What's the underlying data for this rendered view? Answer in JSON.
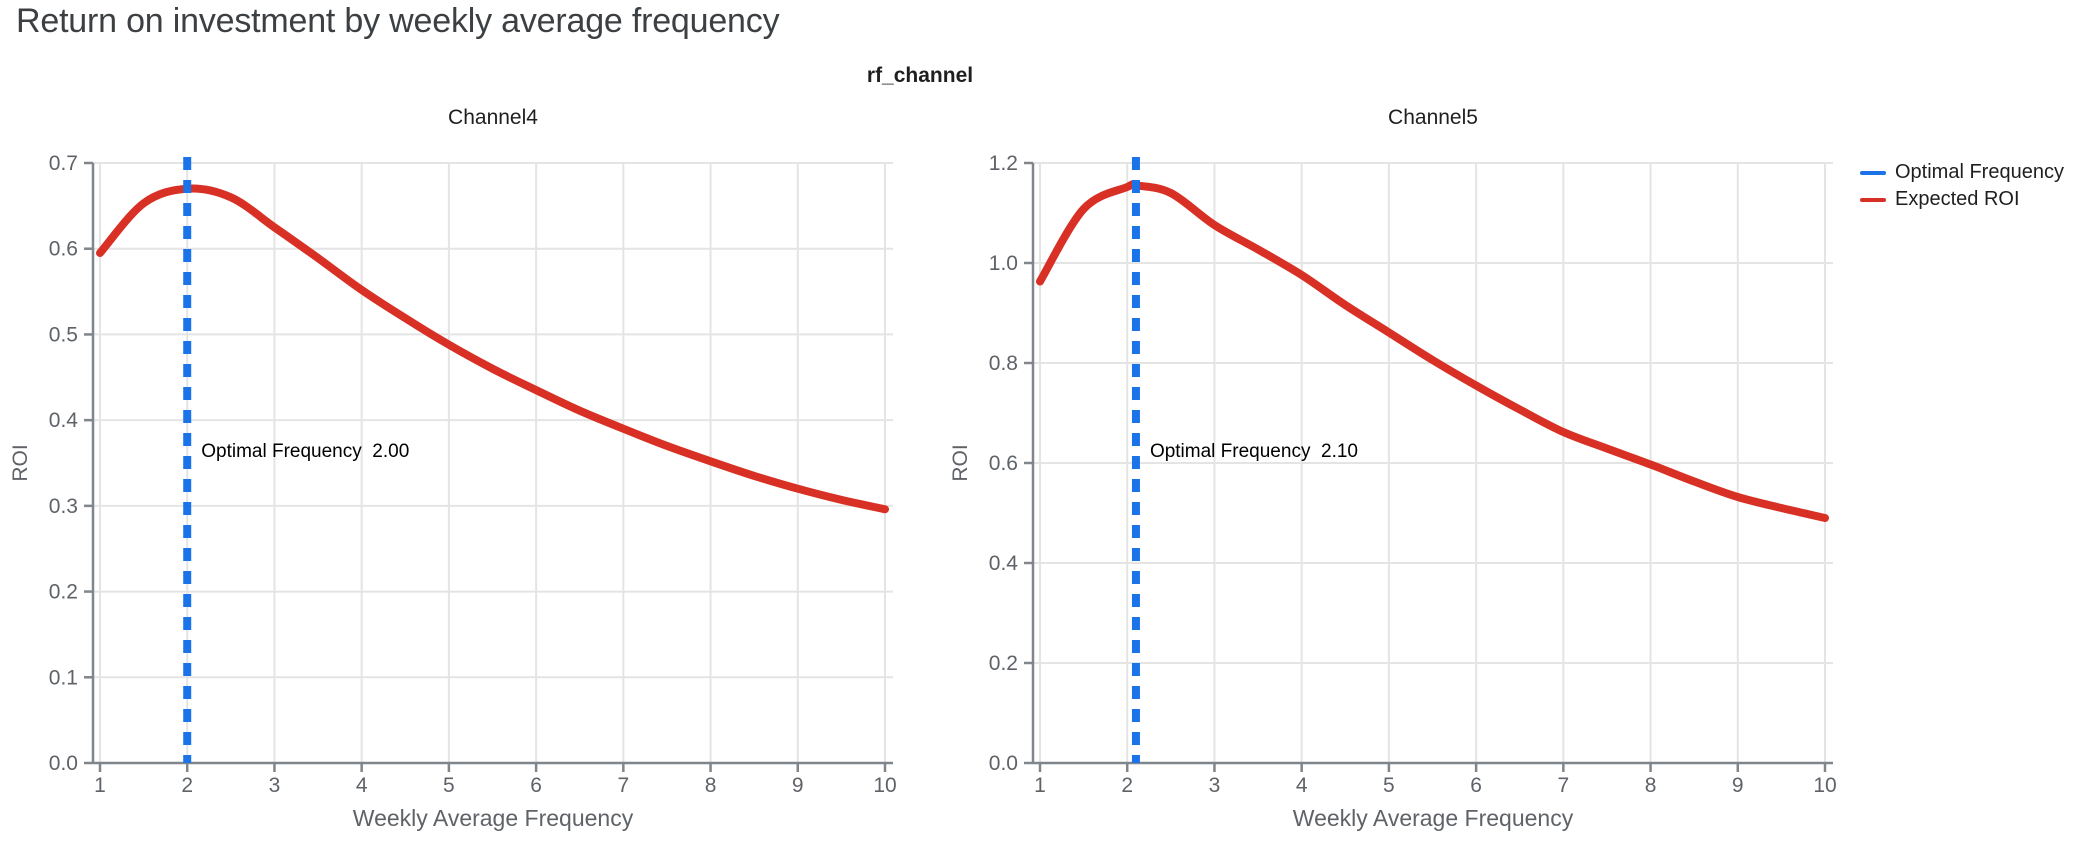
{
  "page": {
    "title": "Return on investment by weekly average frequency"
  },
  "chart_data": {
    "type": "line",
    "suptitle": "rf_channel",
    "xlabel": "Weekly Average Frequency",
    "ylabel": "ROI",
    "x_tick_labels": [
      "1",
      "2",
      "3",
      "4",
      "5",
      "6",
      "7",
      "8",
      "9",
      "10"
    ],
    "xlim": [
      1,
      10
    ],
    "grid": true,
    "legend_position": "top-right",
    "legend": [
      {
        "label": "Optimal Frequency",
        "color": "#1a73e8",
        "style": "dashed-vline"
      },
      {
        "label": "Expected ROI",
        "color": "#d93025",
        "style": "solid-line"
      }
    ],
    "colors": {
      "grid": "#e4e4e4",
      "axis": "#7f868c",
      "tick_label": "#5f6368",
      "axis_title": "#5f6368",
      "panel_title": "#1f1f1f",
      "annotation": "#000000",
      "page_title": "#3c4043"
    },
    "panels": [
      {
        "title": "Channel4",
        "ylim": [
          0,
          0.7
        ],
        "y_tick_labels": [
          "0.0",
          "0.1",
          "0.2",
          "0.3",
          "0.4",
          "0.5",
          "0.6",
          "0.7"
        ],
        "optimal_frequency": 2.0,
        "annotation": "Optimal Frequency  2.00",
        "x": [
          1,
          1.5,
          2,
          2.5,
          3,
          3.5,
          4,
          4.5,
          5,
          5.5,
          6,
          6.5,
          7,
          7.5,
          8,
          8.5,
          9,
          9.5,
          10
        ],
        "roi": [
          0.595,
          0.653,
          0.67,
          0.66,
          0.625,
          0.589,
          0.552,
          0.519,
          0.488,
          0.46,
          0.435,
          0.411,
          0.39,
          0.37,
          0.352,
          0.335,
          0.32,
          0.307,
          0.296
        ]
      },
      {
        "title": "Channel5",
        "ylim": [
          0,
          1.2
        ],
        "y_tick_labels": [
          "0.0",
          "0.2",
          "0.4",
          "0.6",
          "0.8",
          "1.0",
          "1.2"
        ],
        "optimal_frequency": 2.1,
        "annotation": "Optimal Frequency  2.10",
        "x": [
          1,
          1.5,
          2,
          2.1,
          2.5,
          3,
          3.5,
          4,
          4.5,
          5,
          5.5,
          6,
          6.5,
          7,
          7.5,
          8,
          8.5,
          9,
          9.5,
          10
        ],
        "roi": [
          0.963,
          1.108,
          1.152,
          1.155,
          1.14,
          1.076,
          1.027,
          0.976,
          0.916,
          0.861,
          0.806,
          0.755,
          0.707,
          0.662,
          0.629,
          0.597,
          0.563,
          0.532,
          0.51,
          0.49
        ]
      }
    ]
  }
}
